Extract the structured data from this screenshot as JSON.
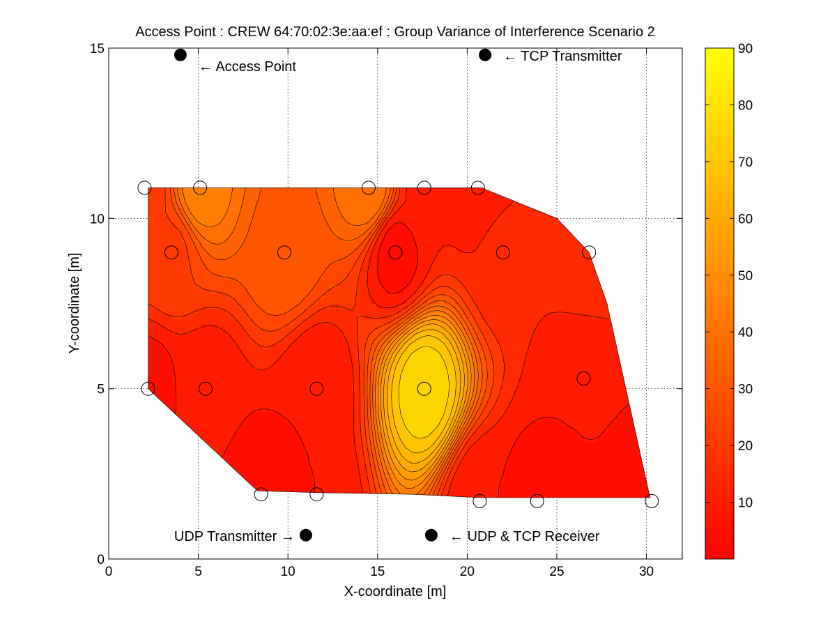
{
  "chart_data": {
    "type": "contour",
    "title": "Access Point : CREW 64:70:02:3e:aa:ef : Group Variance of Interference Scenario 2",
    "xlabel": "X-coordinate [m]",
    "ylabel": "Y-coordinate [m]",
    "xlim": [
      0,
      32
    ],
    "ylim": [
      0,
      15
    ],
    "x_ticks": [
      "0",
      "5",
      "10",
      "15",
      "20",
      "25",
      "30"
    ],
    "y_ticks": [
      "0",
      "5",
      "10",
      "15"
    ],
    "grid": true,
    "colorbar": {
      "range": [
        0,
        90
      ],
      "ticks": [
        "10",
        "20",
        "30",
        "40",
        "50",
        "60",
        "70",
        "80",
        "90"
      ],
      "colormap": "autumn"
    },
    "colors": {
      "low": "#ff0000",
      "high": "#ffff00",
      "contour_line": "#000000"
    },
    "measurement_points": [
      {
        "x": 2.0,
        "y": 10.9
      },
      {
        "x": 5.1,
        "y": 10.9
      },
      {
        "x": 14.5,
        "y": 10.9
      },
      {
        "x": 17.6,
        "y": 10.9
      },
      {
        "x": 20.6,
        "y": 10.9
      },
      {
        "x": 3.5,
        "y": 9.0
      },
      {
        "x": 9.8,
        "y": 9.0
      },
      {
        "x": 16.0,
        "y": 9.0
      },
      {
        "x": 22.0,
        "y": 9.0
      },
      {
        "x": 26.8,
        "y": 9.0
      },
      {
        "x": 2.2,
        "y": 5.0
      },
      {
        "x": 5.4,
        "y": 5.0
      },
      {
        "x": 11.6,
        "y": 5.0
      },
      {
        "x": 17.6,
        "y": 5.0
      },
      {
        "x": 26.5,
        "y": 5.3
      },
      {
        "x": 8.5,
        "y": 1.9
      },
      {
        "x": 11.6,
        "y": 1.9
      },
      {
        "x": 20.7,
        "y": 1.7
      },
      {
        "x": 23.9,
        "y": 1.7
      },
      {
        "x": 30.3,
        "y": 1.7
      }
    ],
    "devices": [
      {
        "label": "← Access Point",
        "x": 4.0,
        "y": 14.8
      },
      {
        "label": "← TCP Transmitter",
        "x": 21.0,
        "y": 14.8
      },
      {
        "label": "UDP Transmitter →",
        "x": 11.0,
        "y": 0.7
      },
      {
        "label": "← UDP & TCP Receiver",
        "x": 18.0,
        "y": 0.7
      }
    ],
    "interpolation_points": [
      {
        "x": 2.0,
        "y": 10.9,
        "v": 22
      },
      {
        "x": 5.1,
        "y": 10.9,
        "v": 48
      },
      {
        "x": 14.5,
        "y": 10.9,
        "v": 44
      },
      {
        "x": 17.6,
        "y": 10.9,
        "v": 14
      },
      {
        "x": 20.6,
        "y": 10.9,
        "v": 12
      },
      {
        "x": 3.5,
        "y": 9.0,
        "v": 24
      },
      {
        "x": 9.8,
        "y": 9.0,
        "v": 34
      },
      {
        "x": 16.0,
        "y": 9.0,
        "v": 8
      },
      {
        "x": 22.0,
        "y": 9.0,
        "v": 16
      },
      {
        "x": 26.8,
        "y": 9.0,
        "v": 20
      },
      {
        "x": 2.2,
        "y": 5.0,
        "v": 8
      },
      {
        "x": 5.4,
        "y": 5.0,
        "v": 12
      },
      {
        "x": 11.6,
        "y": 5.0,
        "v": 10
      },
      {
        "x": 17.6,
        "y": 5.0,
        "v": 78
      },
      {
        "x": 26.5,
        "y": 5.3,
        "v": 10
      },
      {
        "x": 8.5,
        "y": 1.9,
        "v": 6
      },
      {
        "x": 11.6,
        "y": 1.9,
        "v": 10
      },
      {
        "x": 20.7,
        "y": 1.7,
        "v": 10
      },
      {
        "x": 23.9,
        "y": 1.7,
        "v": 8
      },
      {
        "x": 30.3,
        "y": 1.7,
        "v": 8
      }
    ],
    "region": [
      [
        2.2,
        10.9
      ],
      [
        20.8,
        10.9
      ],
      [
        25.0,
        10.0
      ],
      [
        26.8,
        9.0
      ],
      [
        27.8,
        7.5
      ],
      [
        30.2,
        1.8
      ],
      [
        20.7,
        1.8
      ],
      [
        17.0,
        1.9
      ],
      [
        11.6,
        1.95
      ],
      [
        8.3,
        2.0
      ],
      [
        2.2,
        5.0
      ],
      [
        2.2,
        7.8
      ]
    ],
    "contour_levels": [
      5,
      10,
      15,
      20,
      25,
      30,
      35,
      40,
      45,
      50,
      55,
      60,
      65,
      70,
      75,
      80
    ]
  }
}
